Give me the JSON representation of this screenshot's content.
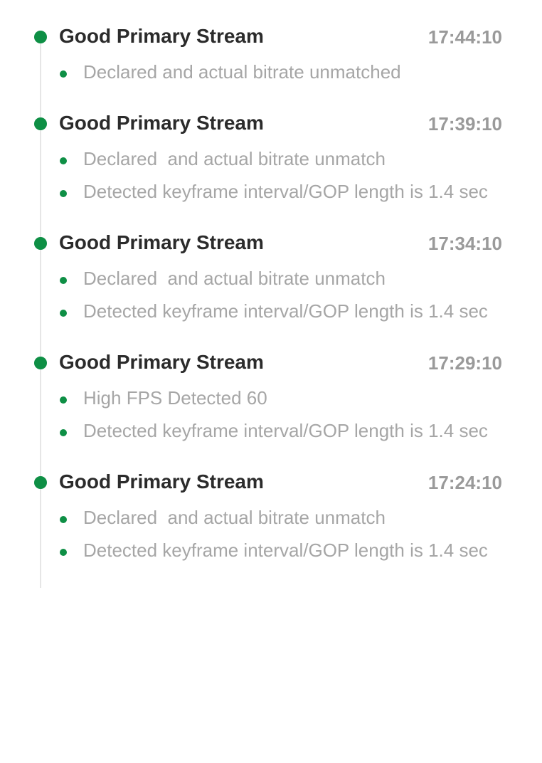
{
  "colors": {
    "accent": "#0e8f45",
    "title": "#2b2b2b",
    "time": "#9a9a9a",
    "detail": "#a6a6a6",
    "line": "#e6e6e6"
  },
  "events": [
    {
      "title": "Good Primary Stream",
      "time": "17:44:10",
      "details": [
        "Declared and actual bitrate unmatched"
      ]
    },
    {
      "title": "Good Primary Stream",
      "time": "17:39:10",
      "details": [
        "Declared  and actual bitrate unmatch",
        "Detected keyframe interval/GOP length is 1.4 sec"
      ]
    },
    {
      "title": "Good Primary Stream",
      "time": "17:34:10",
      "details": [
        "Declared  and actual bitrate unmatch",
        "Detected keyframe interval/GOP length is 1.4 sec"
      ]
    },
    {
      "title": "Good Primary Stream",
      "time": "17:29:10",
      "details": [
        "High FPS Detected 60",
        "Detected keyframe interval/GOP length is 1.4 sec"
      ]
    },
    {
      "title": "Good Primary Stream",
      "time": "17:24:10",
      "details": [
        "Declared  and actual bitrate unmatch",
        "Detected keyframe interval/GOP length is 1.4 sec"
      ]
    }
  ]
}
